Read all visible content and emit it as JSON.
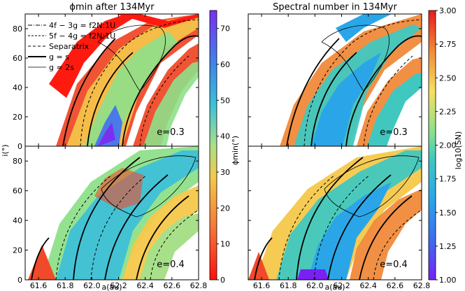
{
  "chart_data": [
    {
      "type": "heatmap",
      "panel": "top-left",
      "title": "ϕmin after 134Myr",
      "ylabel": "i(°)",
      "annotation": "e=0.3",
      "xlim": [
        61.5,
        62.8
      ],
      "ylim": [
        0,
        90
      ],
      "yticks": [
        "0",
        "20",
        "40",
        "60",
        "80"
      ],
      "legend": {
        "position": "top-left",
        "entries": [
          "4f − 3g = f2N:1U",
          "5f − 4g = f2N:1U",
          "Separatrix",
          "g = s",
          "g = 2s"
        ]
      }
    },
    {
      "type": "heatmap",
      "panel": "bottom-left",
      "annotation": "e=0.4",
      "xlabel": "a(au)",
      "xlim": [
        61.5,
        62.8
      ],
      "ylim": [
        0,
        90
      ],
      "xticks": [
        "61.6",
        "61.8",
        "62.0",
        "62.2",
        "62.4",
        "62.6",
        "62.8"
      ],
      "yticks": [
        "0",
        "20",
        "40",
        "60",
        "80"
      ]
    },
    {
      "type": "heatmap",
      "panel": "top-right",
      "title": "Spectral number in 134Myr",
      "annotation": "e=0.3",
      "xlim": [
        61.5,
        62.8
      ],
      "ylim": [
        0,
        90
      ]
    },
    {
      "type": "heatmap",
      "panel": "bottom-right",
      "annotation": "e=0.4",
      "xlabel": "a(au)",
      "xlim": [
        61.5,
        62.8
      ],
      "ylim": [
        0,
        90
      ],
      "xticks": [
        "61.6",
        "61.8",
        "62.0",
        "62.2",
        "62.4",
        "62.6",
        "62.8"
      ]
    }
  ],
  "colorbars": {
    "left": {
      "label": "ϕmin(°)",
      "range": [
        0,
        75
      ],
      "ticks": [
        "0",
        "10",
        "20",
        "30",
        "40",
        "50",
        "60",
        "70"
      ]
    },
    "right": {
      "label": "log10(SN)",
      "range": [
        1.0,
        3.0
      ],
      "ticks": [
        "1.00",
        "1.25",
        "1.50",
        "1.75",
        "2.00",
        "2.25",
        "2.50",
        "2.75",
        "3.00"
      ]
    }
  }
}
